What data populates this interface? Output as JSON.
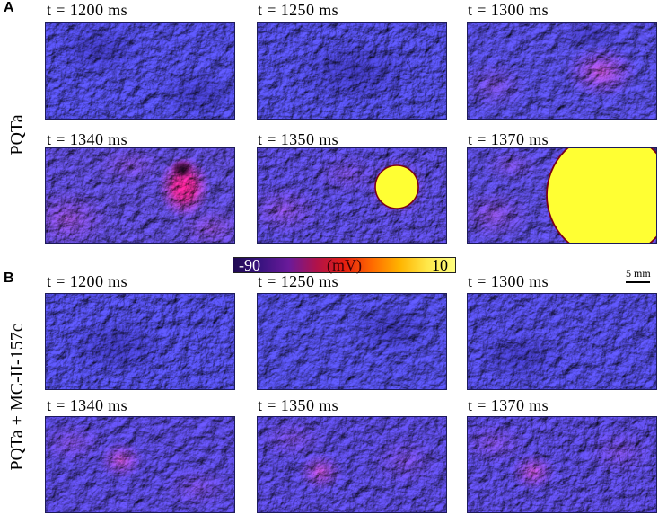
{
  "figure": {
    "panel_a": {
      "label": "A",
      "condition": "PQTa",
      "frames": [
        {
          "time": "t = 1200 ms"
        },
        {
          "time": "t = 1250 ms"
        },
        {
          "time": "t = 1300 ms"
        },
        {
          "time": "t = 1340 ms"
        },
        {
          "time": "t = 1350 ms"
        },
        {
          "time": "t = 1370 ms"
        }
      ]
    },
    "panel_b": {
      "label": "B",
      "condition": "PQTa + MC-II-157c",
      "frames": [
        {
          "time": "t = 1200 ms"
        },
        {
          "time": "t = 1250 ms"
        },
        {
          "time": "t = 1300 ms"
        },
        {
          "time": "t = 1340 ms"
        },
        {
          "time": "t = 1350 ms"
        },
        {
          "time": "t = 1370 ms"
        }
      ]
    }
  },
  "colorbar": {
    "min_label": "-90",
    "unit_label": "(mV)",
    "max_label": "10",
    "gradient_colors": [
      "#200a52",
      "#3a1380",
      "#6a1a9a",
      "#b0124a",
      "#e41e10",
      "#ff6a00",
      "#ffb400",
      "#ffe84a",
      "#ffff80"
    ]
  },
  "scale_bar": {
    "label": "5 mm"
  },
  "colors": {
    "tissue_rest": "#4c47d8",
    "excited": "#ffff33",
    "wavefront_edge": "#7a0018",
    "panel_border": "#1d1b5a"
  }
}
